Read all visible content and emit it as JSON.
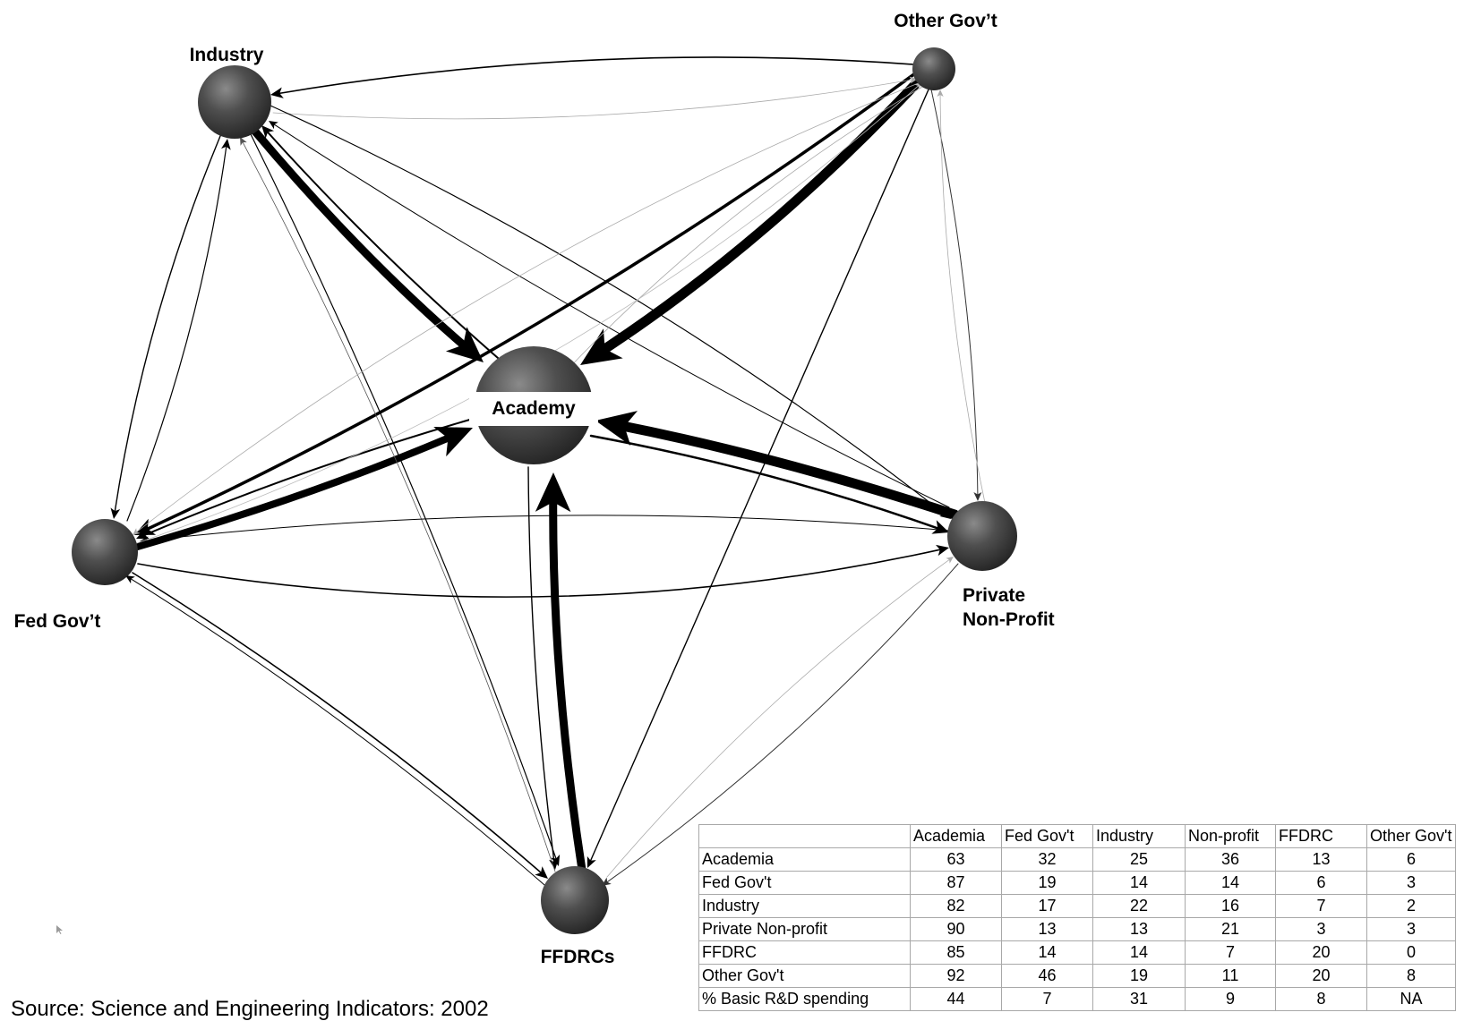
{
  "nodes": [
    {
      "id": "academy",
      "label": "Academy"
    },
    {
      "id": "industry",
      "label": "Industry"
    },
    {
      "id": "other_govt",
      "label": "Other Gov’t"
    },
    {
      "id": "fed_govt",
      "label": "Fed Gov’t"
    },
    {
      "id": "private_nonprofit",
      "label_line1": "Private",
      "label_line2": "Non-Profit"
    },
    {
      "id": "ffdrcs",
      "label": "FFDRCs"
    }
  ],
  "table": {
    "columns": [
      "",
      "Academia",
      "Fed Gov't",
      "Industry",
      "Non-profit",
      "FFDRC",
      "Other Gov't"
    ],
    "rows": [
      {
        "label": "Academia",
        "values": [
          "63",
          "32",
          "25",
          "36",
          "13",
          "6"
        ]
      },
      {
        "label": "Fed Gov't",
        "values": [
          "87",
          "19",
          "14",
          "14",
          "6",
          "3"
        ]
      },
      {
        "label": "Industry",
        "values": [
          "82",
          "17",
          "22",
          "16",
          "7",
          "2"
        ]
      },
      {
        "label": "Private Non-profit",
        "values": [
          "90",
          "13",
          "13",
          "21",
          "3",
          "3"
        ]
      },
      {
        "label": "FFDRC",
        "values": [
          "85",
          "14",
          "14",
          "7",
          "20",
          "0"
        ]
      },
      {
        "label": "Other Gov't",
        "values": [
          "92",
          "46",
          "19",
          "11",
          "20",
          "8"
        ]
      },
      {
        "label": "% Basic R&D spending",
        "values": [
          "44",
          "7",
          "31",
          "9",
          "8",
          "NA"
        ]
      }
    ]
  },
  "source_note": "Source: Science and Engineering Indicators: 2002",
  "colors": {
    "node_fill": "#4a4a4a",
    "edge": "#000000",
    "table_border": "#a8a8a8"
  }
}
